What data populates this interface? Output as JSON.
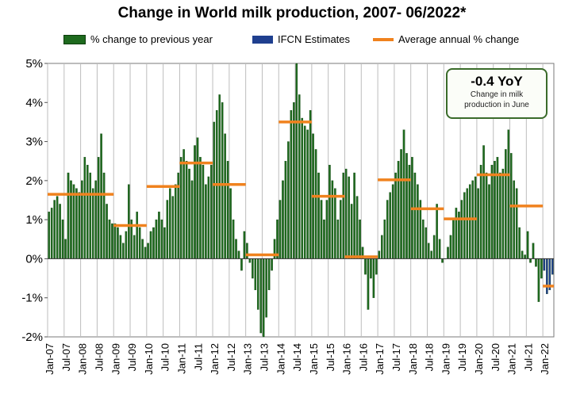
{
  "chart_data": {
    "type": "bar",
    "title": "Change in World milk production, 2007- 06/2022*",
    "legend": [
      {
        "label": "% change to previous year",
        "color": "#1e6a1e",
        "kind": "bar"
      },
      {
        "label": "IFCN Estimates",
        "color": "#1f3f8f",
        "kind": "bar"
      },
      {
        "label": "Average annual % change",
        "color": "#f0821e",
        "kind": "line"
      }
    ],
    "legend_placement": "top",
    "ylim": [
      -2,
      5
    ],
    "y_ticks": [
      "-2%",
      "-1%",
      "0%",
      "1%",
      "2%",
      "3%",
      "4%",
      "5%"
    ],
    "x_ticks": [
      "Jan-07",
      "Jul-07",
      "Jan-08",
      "Jul-08",
      "Jan-09",
      "Jul-09",
      "Jan-10",
      "Jul-10",
      "Jan-11",
      "Jul-11",
      "Jan-12",
      "Jul-12",
      "Jan-13",
      "Jul-13",
      "Jan-14",
      "Jul-14",
      "Jan-15",
      "Jul-15",
      "Jan-16",
      "Jul-16",
      "Jan-17",
      "Jul-17",
      "Jan-18",
      "Jul-18",
      "Jan-19",
      "Jul-19",
      "Jan-20",
      "Jul-20",
      "Jan-21",
      "Jul-21",
      "Jan-22"
    ],
    "start_month": "Jan-07",
    "grid": "vertical",
    "colors": {
      "bar": "#1e6a1e",
      "estimate": "#1f3f8f",
      "average": "#f0821e"
    },
    "monthly_change_pct": [
      1.2,
      1.3,
      1.5,
      1.6,
      1.4,
      1.0,
      0.5,
      2.2,
      2.0,
      1.9,
      1.8,
      1.7,
      2.0,
      2.6,
      2.4,
      2.2,
      1.8,
      2.0,
      2.6,
      3.2,
      2.2,
      1.4,
      1.0,
      0.9,
      0.9,
      0.8,
      0.6,
      0.4,
      0.7,
      1.9,
      1.0,
      0.6,
      1.2,
      0.8,
      0.5,
      0.3,
      0.4,
      0.7,
      0.8,
      1.0,
      1.2,
      1.0,
      0.8,
      1.5,
      1.8,
      1.6,
      1.9,
      2.2,
      2.6,
      2.8,
      2.5,
      2.3,
      2.0,
      2.9,
      3.1,
      2.6,
      2.4,
      1.9,
      2.1,
      2.4,
      3.5,
      3.8,
      4.2,
      4.0,
      3.2,
      2.5,
      1.8,
      1.0,
      0.5,
      0.2,
      -0.3,
      0.7,
      0.4,
      -0.1,
      -0.5,
      -0.8,
      -1.3,
      -1.9,
      -2.0,
      -1.5,
      -0.8,
      -0.3,
      0.5,
      1.0,
      1.5,
      2.0,
      2.5,
      3.0,
      3.8,
      4.0,
      5.0,
      4.2,
      3.6,
      3.4,
      3.3,
      3.8,
      3.2,
      2.8,
      2.2,
      1.5,
      1.0,
      1.5,
      2.4,
      2.0,
      1.8,
      1.0,
      1.5,
      2.2,
      2.3,
      2.1,
      1.4,
      2.2,
      1.6,
      1.0,
      0.3,
      -0.4,
      -1.3,
      -0.5,
      -1.0,
      -0.4,
      0.2,
      0.6,
      1.0,
      1.5,
      1.7,
      1.9,
      2.2,
      2.5,
      2.8,
      3.3,
      2.7,
      2.4,
      2.6,
      2.2,
      1.9,
      1.5,
      1.0,
      0.8,
      0.4,
      0.2,
      0.6,
      1.4,
      0.5,
      -0.1,
      0.0,
      0.3,
      0.6,
      1.0,
      1.3,
      1.2,
      1.5,
      1.7,
      1.8,
      1.9,
      2.0,
      2.1,
      1.8,
      2.4,
      2.9,
      2.2,
      1.9,
      2.4,
      2.5,
      2.6,
      2.2,
      2.3,
      2.8,
      3.3,
      2.7,
      2.0,
      1.8,
      0.8,
      0.2,
      0.1,
      0.7,
      -0.1,
      0.4,
      -0.2,
      -1.1,
      -0.5
    ],
    "ifcn_estimates_pct": [
      -0.3,
      -0.9,
      -0.8,
      -0.4
    ],
    "average_annual_pct": [
      1.65,
      1.65,
      0.85,
      1.85,
      2.45,
      1.9,
      0.1,
      3.5,
      1.6,
      0.05,
      2.02,
      1.28,
      1.02,
      2.15,
      1.35,
      -0.7
    ]
  },
  "callout": {
    "headline": "-0.4 YoY",
    "line1": "Change in milk",
    "line2": "production in June"
  }
}
